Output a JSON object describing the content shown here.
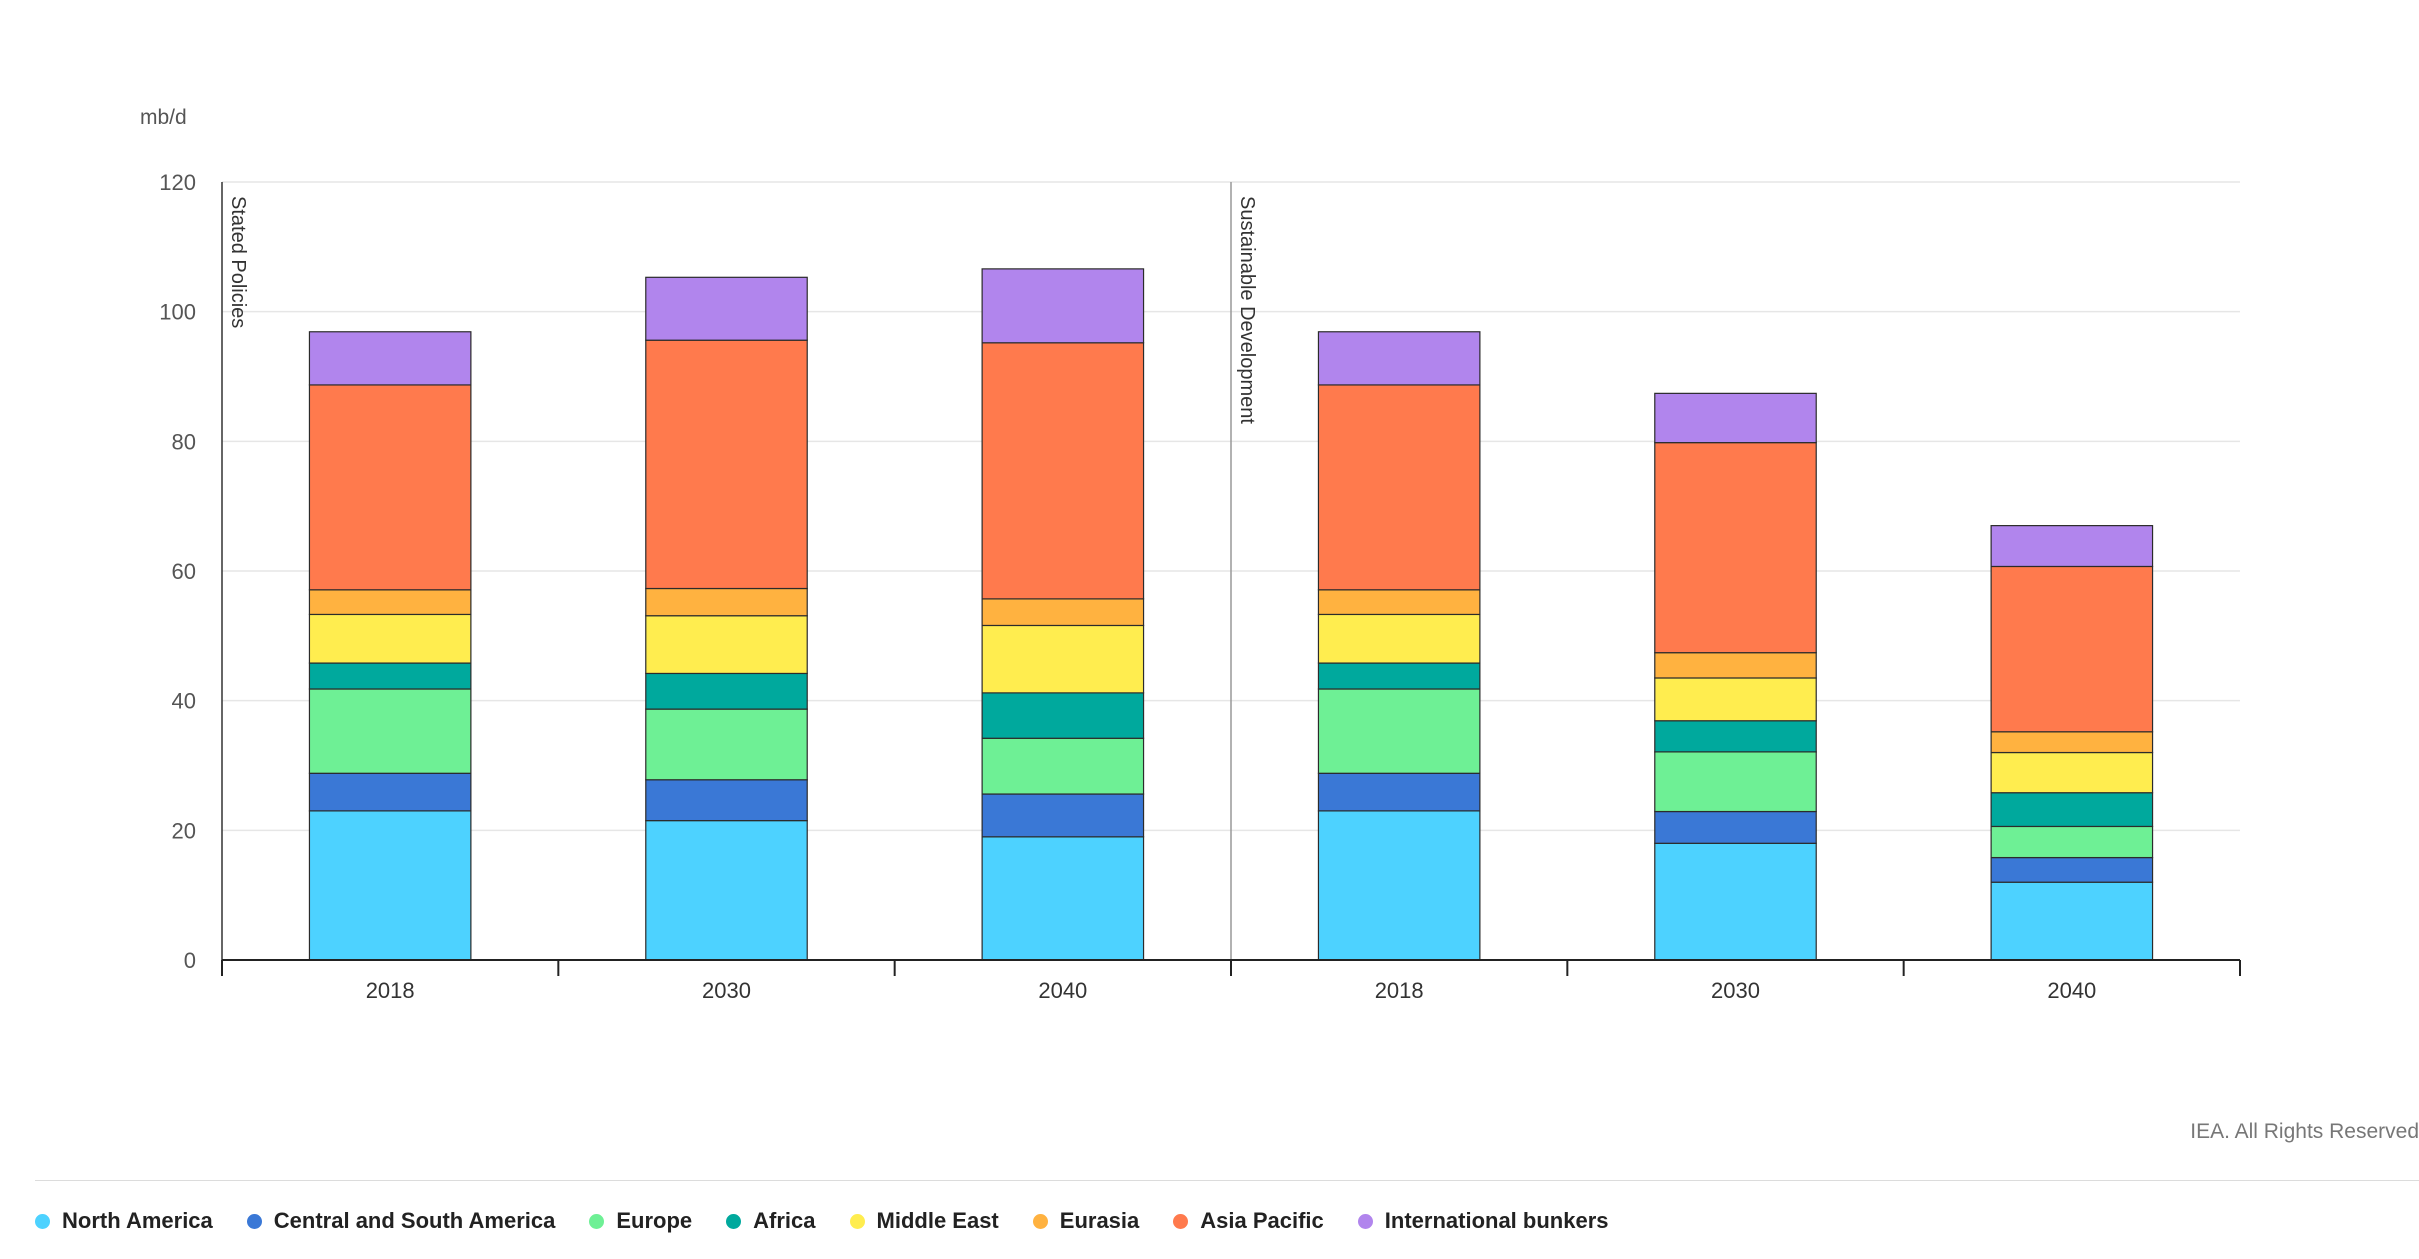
{
  "chart_data": {
    "type": "bar",
    "stacked": true,
    "ylabel": "mb/d",
    "ylim": [
      0,
      120
    ],
    "yticks": [
      0,
      20,
      40,
      60,
      80,
      100,
      120
    ],
    "grid": true,
    "groups": [
      {
        "name": "Stated Policies",
        "categories": [
          "2018",
          "2030",
          "2040"
        ]
      },
      {
        "name": "Sustainable Development",
        "categories": [
          "2018",
          "2030",
          "2040"
        ]
      }
    ],
    "categories": [
      "2018",
      "2030",
      "2040",
      "2018",
      "2030",
      "2040"
    ],
    "series": [
      {
        "name": "North America",
        "color": "#4dd2ff",
        "values": [
          23,
          21.5,
          19,
          23,
          18,
          12
        ]
      },
      {
        "name": "Central and South America",
        "color": "#3a78d6",
        "values": [
          5.8,
          6.3,
          6.6,
          5.8,
          4.9,
          3.8
        ]
      },
      {
        "name": "Europe",
        "color": "#6ef095",
        "values": [
          13,
          10.9,
          8.6,
          13,
          9.2,
          4.8
        ]
      },
      {
        "name": "Africa",
        "color": "#00a99d",
        "values": [
          4,
          5.5,
          7,
          4,
          4.8,
          5.2
        ]
      },
      {
        "name": "Middle East",
        "color": "#ffed4f",
        "values": [
          7.5,
          8.9,
          10.4,
          7.5,
          6.6,
          6.2
        ]
      },
      {
        "name": "Eurasia",
        "color": "#ffb240",
        "values": [
          3.8,
          4.2,
          4.1,
          3.8,
          3.9,
          3.2
        ]
      },
      {
        "name": "Asia Pacific",
        "color": "#ff7a4d",
        "values": [
          31.6,
          38.3,
          39.5,
          31.6,
          32.4,
          25.5
        ]
      },
      {
        "name": "International bunkers",
        "color": "#b185ed",
        "values": [
          8.2,
          9.7,
          11.4,
          8.2,
          7.6,
          6.3
        ]
      }
    ]
  },
  "credit": "IEA. All Rights Reserved"
}
